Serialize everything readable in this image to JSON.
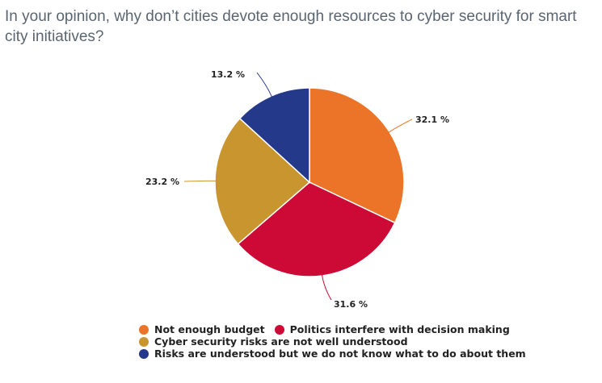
{
  "title": "In your opinion, why don’t cities devote enough resources to cyber security for smart city initiatives?",
  "chart_data": {
    "type": "pie",
    "title": "In your opinion, why don’t cities devote enough resources to cyber security for smart city initiatives?",
    "legend_position": "bottom",
    "slices": [
      {
        "label": "Not enough budget",
        "value": 32.1,
        "display": "32.1 %",
        "color": "#ec7428"
      },
      {
        "label": "Politics interfere with decision making",
        "value": 31.6,
        "display": "31.6 %",
        "color": "#cc0a35"
      },
      {
        "label": "Cyber security risks are not well understood",
        "value": 23.2,
        "display": "23.2 %",
        "color": "#c9952e"
      },
      {
        "label": "Risks are understood but we do not know what to do about them",
        "value": 13.2,
        "display": "13.2 %",
        "color": "#25398a"
      }
    ]
  }
}
